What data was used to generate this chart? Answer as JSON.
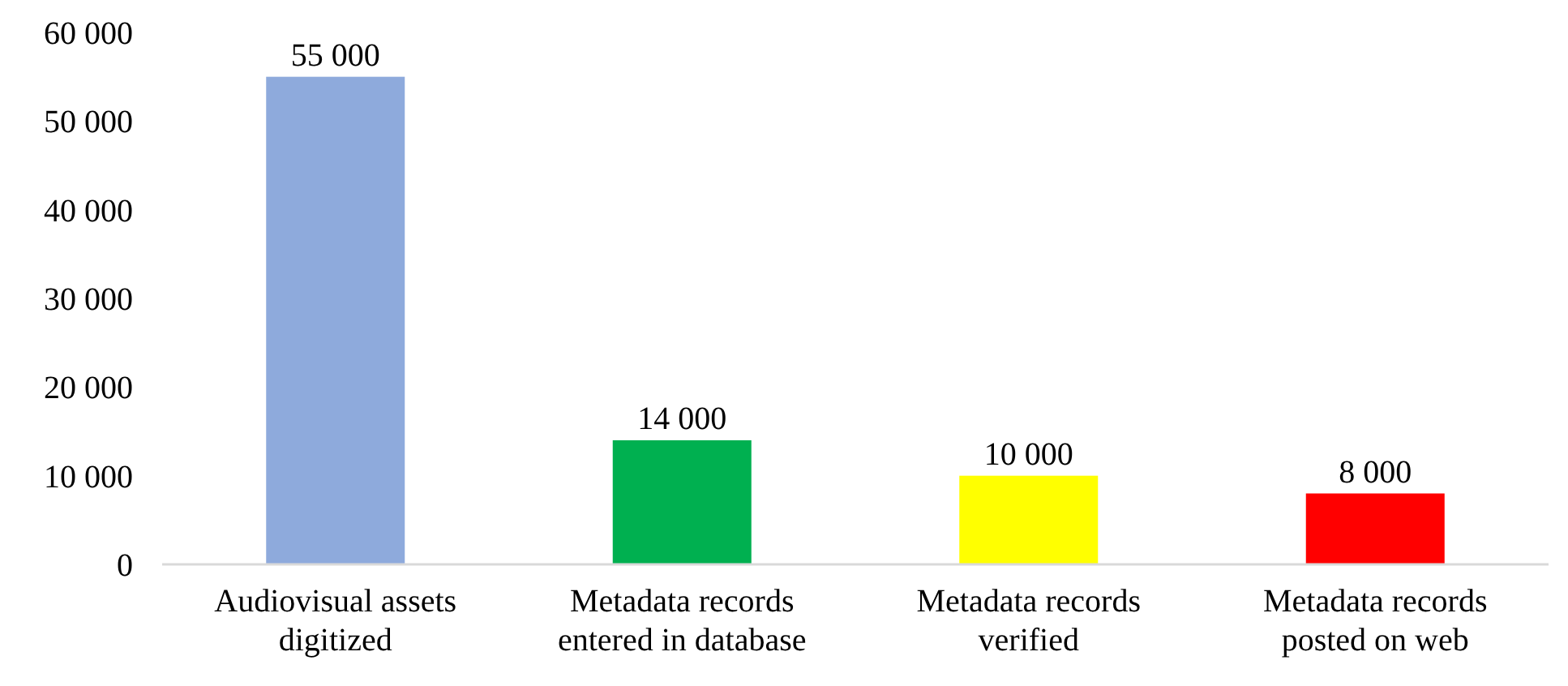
{
  "chart_data": {
    "type": "bar",
    "categories": [
      "Audiovisual assets digitized",
      "Metadata records entered in database",
      "Metadata records verified",
      "Metadata records posted on web"
    ],
    "values": [
      55000,
      14000,
      10000,
      8000
    ],
    "colors": [
      "#8eaadc",
      "#00b050",
      "#ffff00",
      "#ff0000"
    ],
    "value_labels": [
      "55 000",
      "14 000",
      "10 000",
      "8 000"
    ],
    "ylim": [
      0,
      60000
    ],
    "yticks": [
      {
        "value": 0,
        "label": "0"
      },
      {
        "value": 10000,
        "label": "10 000"
      },
      {
        "value": 20000,
        "label": "20 000"
      },
      {
        "value": 30000,
        "label": "30 000"
      },
      {
        "value": 40000,
        "label": "40 000"
      },
      {
        "value": 50000,
        "label": "50 000"
      },
      {
        "value": 60000,
        "label": "60 000"
      }
    ],
    "grid": false
  }
}
